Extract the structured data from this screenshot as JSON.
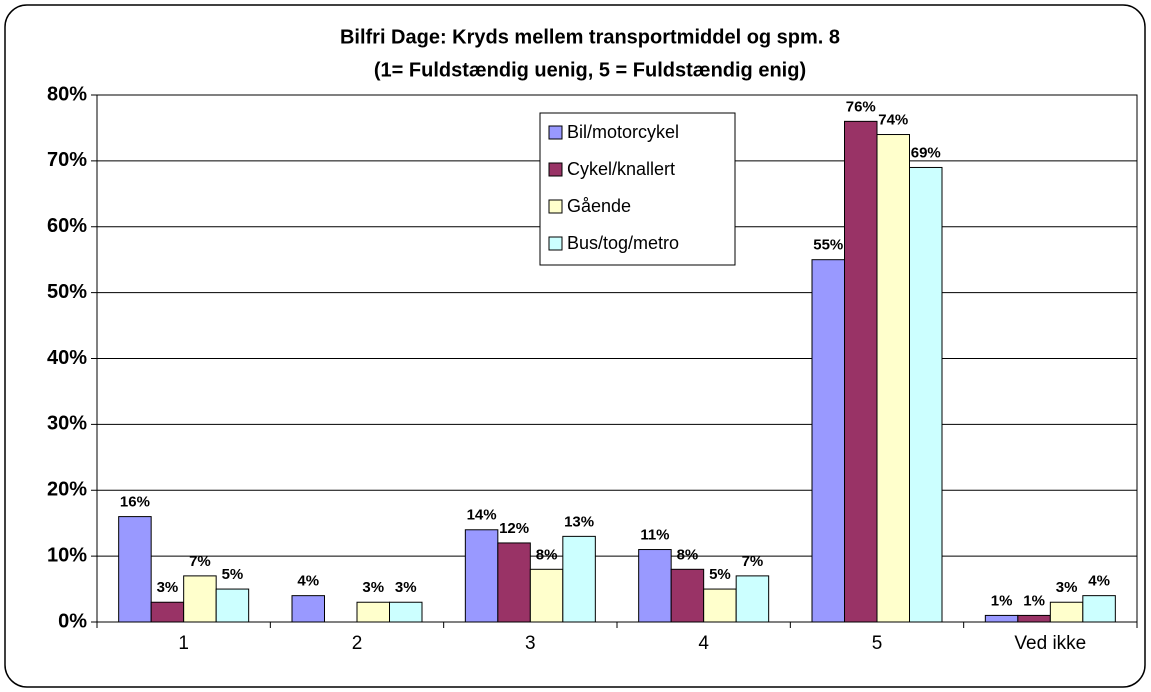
{
  "chart_data": {
    "type": "bar",
    "title": "Bilfri Dage: Kryds mellem transportmiddel og spm. 8",
    "subtitle": "(1= Fuldstændig uenig, 5 = Fuldstændig enig)",
    "categories": [
      "1",
      "2",
      "3",
      "4",
      "5",
      "Ved ikke"
    ],
    "series": [
      {
        "name": "Bil/motorcykel",
        "color": "#9999ff",
        "values": [
          16,
          4,
          14,
          11,
          55,
          1
        ],
        "value_labels": [
          "16%",
          "4%",
          "14%",
          "11%",
          "55%",
          "1%"
        ]
      },
      {
        "name": "Cykel/knallert",
        "color": "#993366",
        "values": [
          3,
          null,
          12,
          8,
          76,
          1
        ],
        "value_labels": [
          "3%",
          null,
          "12%",
          "8%",
          "76%",
          "1%"
        ]
      },
      {
        "name": "Gående",
        "color": "#ffffcc",
        "values": [
          7,
          3,
          8,
          5,
          74,
          3
        ],
        "value_labels": [
          "7%",
          "3%",
          "8%",
          "5%",
          "74%",
          "3%"
        ]
      },
      {
        "name": "Bus/tog/metro",
        "color": "#ccffff",
        "values": [
          5,
          3,
          13,
          7,
          69,
          4
        ],
        "value_labels": [
          "5%",
          "3%",
          "13%",
          "7%",
          "69%",
          "4%"
        ]
      }
    ],
    "ylim": [
      0,
      80
    ],
    "yticks": [
      {
        "value": 0,
        "label": "0%"
      },
      {
        "value": 10,
        "label": "10%"
      },
      {
        "value": 20,
        "label": "20%"
      },
      {
        "value": 30,
        "label": "30%"
      },
      {
        "value": 40,
        "label": "40%"
      },
      {
        "value": 50,
        "label": "50%"
      },
      {
        "value": 60,
        "label": "60%"
      },
      {
        "value": 70,
        "label": "70%"
      },
      {
        "value": 80,
        "label": "80%"
      }
    ],
    "grid": true
  }
}
